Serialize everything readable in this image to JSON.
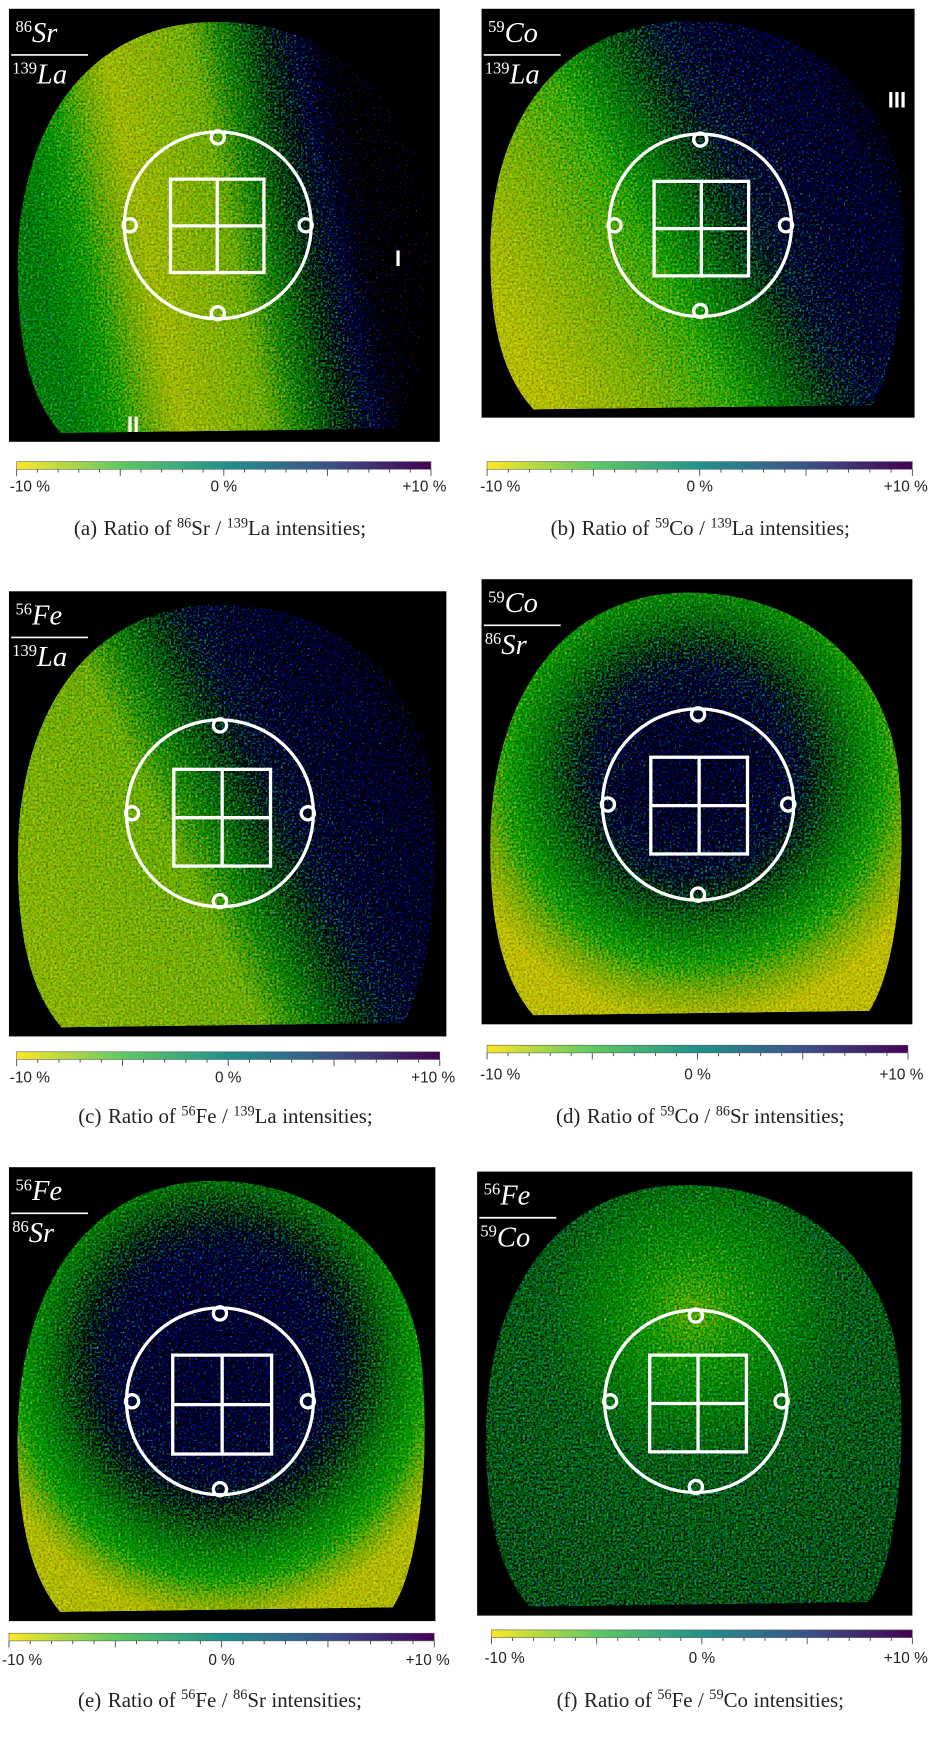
{
  "panels": [
    {
      "tag": "(a)",
      "numerator": {
        "mass": "86",
        "element": "Sr"
      },
      "denominator": {
        "mass": "139",
        "element": "La"
      },
      "region_labels": [
        "I",
        "II"
      ],
      "colorbar": [
        "-10 %",
        "0 %",
        "+10 %"
      ],
      "caption": {
        "prefix": "Ratio of",
        "separator": "/",
        "suffix": "intensities;"
      }
    },
    {
      "tag": "(b)",
      "numerator": {
        "mass": "59",
        "element": "Co"
      },
      "denominator": {
        "mass": "139",
        "element": "La"
      },
      "region_labels": [
        "III"
      ],
      "colorbar": [
        "-10 %",
        "0 %",
        "+10 %"
      ],
      "caption": {
        "prefix": "Ratio of",
        "separator": "/",
        "suffix": "intensities;"
      }
    },
    {
      "tag": "(c)",
      "numerator": {
        "mass": "56",
        "element": "Fe"
      },
      "denominator": {
        "mass": "139",
        "element": "La"
      },
      "region_labels": [],
      "colorbar": [
        "-10 %",
        "0 %",
        "+10 %"
      ],
      "caption": {
        "prefix": "Ratio of",
        "separator": "/",
        "suffix": "intensities;"
      }
    },
    {
      "tag": "(d)",
      "numerator": {
        "mass": "59",
        "element": "Co"
      },
      "denominator": {
        "mass": "86",
        "element": "Sr"
      },
      "region_labels": [],
      "colorbar": [
        "-10 %",
        "0 %",
        "+10 %"
      ],
      "caption": {
        "prefix": "Ratio of",
        "separator": "/",
        "suffix": "intensities;"
      }
    },
    {
      "tag": "(e)",
      "numerator": {
        "mass": "56",
        "element": "Fe"
      },
      "denominator": {
        "mass": "86",
        "element": "Sr"
      },
      "region_labels": [],
      "colorbar": [
        "-10 %",
        "0 %",
        "+10 %"
      ],
      "caption": {
        "prefix": "Ratio of",
        "separator": "/",
        "suffix": "intensities;"
      }
    },
    {
      "tag": "(f)",
      "numerator": {
        "mass": "56",
        "element": "Fe"
      },
      "denominator": {
        "mass": "59",
        "element": "Co"
      },
      "region_labels": [],
      "colorbar": [
        "-10 %",
        "0 %",
        "+10 %"
      ],
      "caption": {
        "prefix": "Ratio of",
        "separator": "/",
        "suffix": "intensities;"
      }
    }
  ]
}
